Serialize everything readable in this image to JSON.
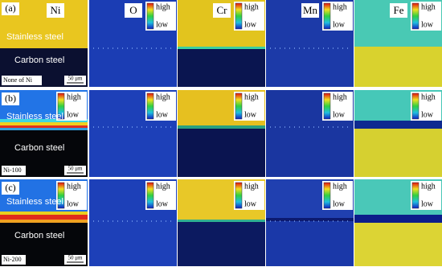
{
  "columns": [
    "Ni",
    "O",
    "Cr",
    "Mn",
    "Fe"
  ],
  "colorbar": {
    "high": "high",
    "low": "low"
  },
  "regions": {
    "upper": "Stainless steel",
    "lower": "Carbon steel"
  },
  "rows": [
    {
      "label": "(a)",
      "sample": "None of Ni",
      "scale_bar": "50 μm"
    },
    {
      "label": "(b)",
      "sample": "Ni-100",
      "scale_bar": "50 μm"
    },
    {
      "label": "(c)",
      "sample": "Ni-200",
      "scale_bar": "50 μm"
    }
  ]
}
